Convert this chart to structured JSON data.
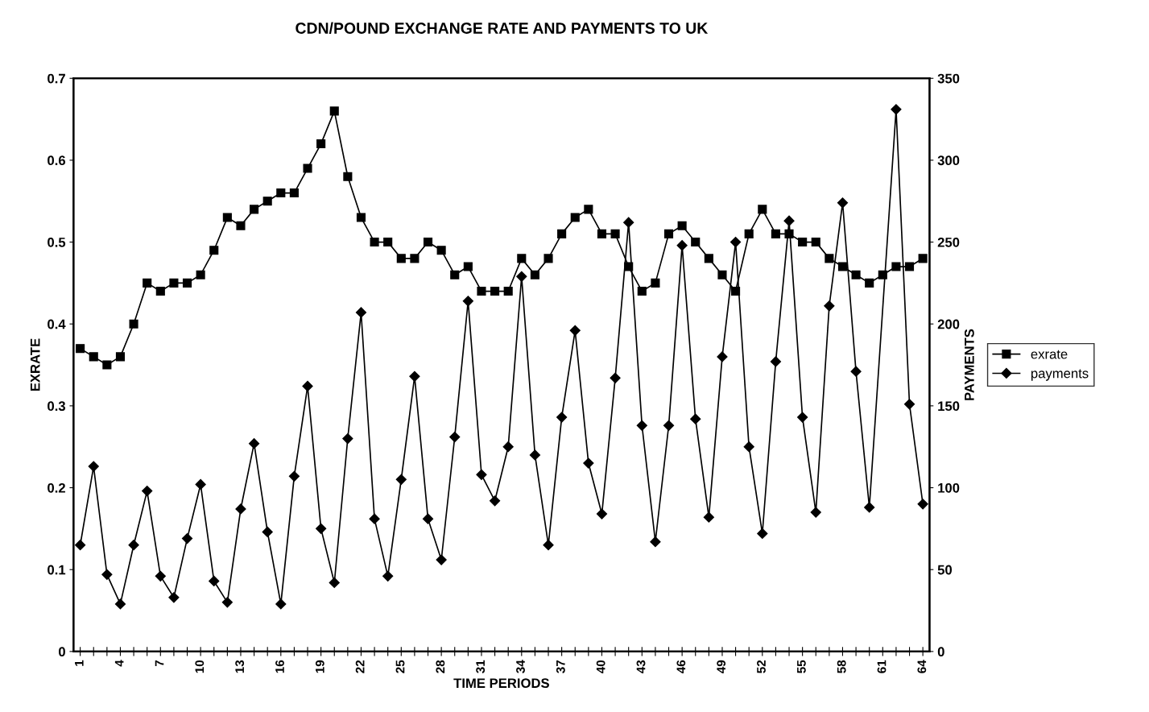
{
  "chart_data": {
    "type": "line",
    "title": "CDN/POUND EXCHANGE RATE AND PAYMENTS TO UK",
    "xlabel": "TIME PERIODS",
    "ylabel": "EXRATE",
    "y2label": "PAYMENTS",
    "categories": [
      "1",
      null,
      null,
      "4",
      null,
      null,
      "7",
      null,
      null,
      "10",
      null,
      null,
      "13",
      null,
      null,
      "16",
      null,
      null,
      "19",
      null,
      null,
      "22",
      null,
      null,
      "25",
      null,
      null,
      "28",
      null,
      null,
      "31",
      null,
      null,
      "34",
      null,
      null,
      "37",
      null,
      null,
      "40",
      null,
      null,
      "43",
      null,
      null,
      "46",
      null,
      null,
      "49",
      null,
      null,
      "52",
      null,
      null,
      "55",
      null,
      null,
      "58",
      null,
      null,
      "61",
      null,
      null,
      "64"
    ],
    "series": [
      {
        "name": "exrate",
        "color": "#000000",
        "marker": "square",
        "values": [
          0.37,
          0.36,
          0.35,
          0.36,
          0.4,
          0.45,
          0.44,
          0.45,
          0.45,
          0.46,
          0.49,
          0.53,
          0.52,
          0.54,
          0.55,
          0.56,
          0.56,
          0.59,
          0.62,
          0.66,
          0.58,
          0.53,
          0.5,
          0.5,
          0.48,
          0.48,
          0.5,
          0.49,
          0.46,
          0.47,
          0.44,
          0.44,
          0.44,
          0.48,
          0.46,
          0.48,
          0.51,
          0.53,
          0.54,
          0.51,
          0.51,
          0.47,
          0.44,
          0.45,
          0.51,
          0.52,
          0.5,
          0.48,
          0.46,
          0.44,
          0.51,
          0.54,
          0.51,
          0.51,
          0.5,
          0.5,
          0.48,
          0.47,
          0.46,
          0.45,
          0.46,
          0.47,
          0.47,
          0.48
        ]
      },
      {
        "name": "payments",
        "color": "#000000",
        "marker": "diamond",
        "axis": "y2",
        "values": [
          65,
          113,
          47,
          29,
          65,
          98,
          46,
          33,
          69,
          102,
          43,
          30,
          87,
          127,
          73,
          29,
          107,
          162,
          75,
          42,
          130,
          207,
          81,
          46,
          105,
          168,
          81,
          56,
          131,
          214,
          108,
          92,
          125,
          229,
          120,
          65,
          143,
          196,
          115,
          84,
          167,
          262,
          138,
          67,
          138,
          248,
          142,
          82,
          180,
          250,
          125,
          72,
          177,
          263,
          143,
          85,
          211,
          274,
          171,
          88,
          null,
          331,
          151,
          90
        ]
      }
    ],
    "ylim": [
      0,
      0.7
    ],
    "yticks": [
      0,
      0.1,
      0.2,
      0.3,
      0.4,
      0.5,
      0.6,
      0.7
    ],
    "y2lim": [
      0,
      350
    ],
    "y2ticks": [
      0,
      50,
      100,
      150,
      200,
      250,
      300,
      350
    ],
    "legend": "right",
    "grid": false,
    "line_style": "solid"
  }
}
